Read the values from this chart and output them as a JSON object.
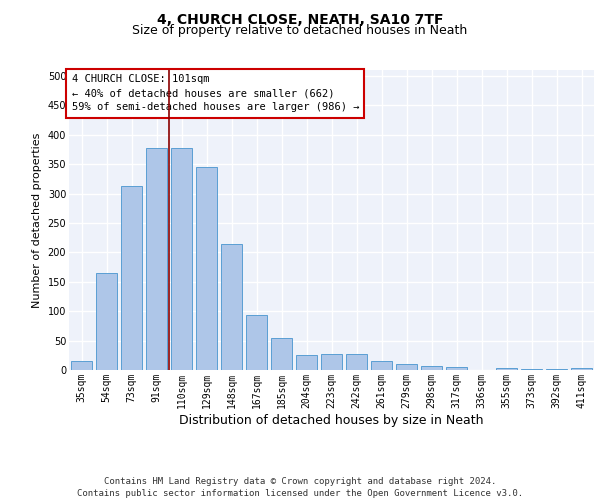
{
  "title1": "4, CHURCH CLOSE, NEATH, SA10 7TF",
  "title2": "Size of property relative to detached houses in Neath",
  "xlabel": "Distribution of detached houses by size in Neath",
  "ylabel": "Number of detached properties",
  "categories": [
    "35sqm",
    "54sqm",
    "73sqm",
    "91sqm",
    "110sqm",
    "129sqm",
    "148sqm",
    "167sqm",
    "185sqm",
    "204sqm",
    "223sqm",
    "242sqm",
    "261sqm",
    "279sqm",
    "298sqm",
    "317sqm",
    "336sqm",
    "355sqm",
    "373sqm",
    "392sqm",
    "411sqm"
  ],
  "values": [
    15,
    165,
    313,
    378,
    378,
    345,
    215,
    93,
    55,
    25,
    28,
    28,
    15,
    10,
    7,
    5,
    0,
    3,
    1,
    1,
    3
  ],
  "bar_color": "#aec6e8",
  "bar_edge_color": "#5a9fd4",
  "vline_x": 3.5,
  "vline_color": "#8b0000",
  "annotation_text": "4 CHURCH CLOSE: 101sqm\n← 40% of detached houses are smaller (662)\n59% of semi-detached houses are larger (986) →",
  "annotation_box_color": "#ffffff",
  "annotation_box_edge": "#cc0000",
  "bg_color": "#eef2fa",
  "grid_color": "#ffffff",
  "footer_line1": "Contains HM Land Registry data © Crown copyright and database right 2024.",
  "footer_line2": "Contains public sector information licensed under the Open Government Licence v3.0.",
  "ylim": [
    0,
    510
  ],
  "yticks": [
    0,
    50,
    100,
    150,
    200,
    250,
    300,
    350,
    400,
    450,
    500
  ],
  "title1_fontsize": 10,
  "title2_fontsize": 9,
  "ylabel_fontsize": 8,
  "xlabel_fontsize": 9,
  "tick_fontsize": 7,
  "footer_fontsize": 6.5
}
